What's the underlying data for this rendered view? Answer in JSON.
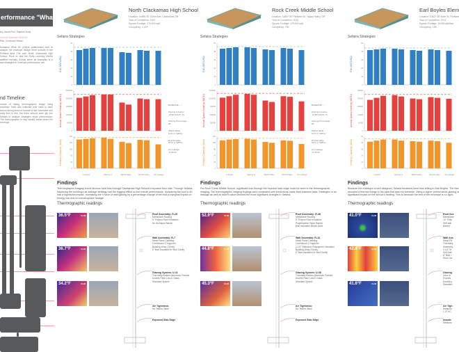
{
  "intro": {
    "title": "erformance \"What Ifs\"",
    "authors": "ley, Jacob Fish, Stephen Emly",
    "advisors_label": "Vertical Graduate Students",
    "advisors": "Pilis, Corrienne Wilson",
    "body": "formance What Ifs\" project collaborated arch to analyze the envelope design three schools in the Portland area. The ools, North Clackamas High School, Rock ol, and the Early Learning Center addition mentary School serve as examples of e and strategies in envelope performance ues.",
    "timeline_heading": "nd Timeline",
    "timeline_body": "rocess of taking thermographic image ilding envelope. Data was collected over visits to each school during times of erature in late November and early ition to this, the three schools were ght into Sefaira to analyze strategies elope performance. The thermographic to help identify areas where the envelope"
  },
  "legend": {
    "baseline": "BASELINE",
    "items": [
      "Glazing U-Factor\n.41 BTU/(h·ft²·°F)",
      "Glazing Percentage\n28",
      "Wall R-Value\n13 ft²·h·°F/BTU",
      "Roof R-Value\n25 ft²·h·°F/BTU",
      "Air Leakage\n.5 cfm/ft²"
    ]
  },
  "colors": {
    "eui": "#2e7fc6",
    "heating": "#e8403c",
    "capacity": "#f4952a",
    "baseline_line": "#5aa7e0",
    "diagram": "#58595b",
    "leader": "#e8a0a8"
  },
  "axis_labels": {
    "eui": "EUI (kBTU/ft2)",
    "heating": "Annual Space Heating (kBTU)",
    "capacity": "Heating Capacity (kBtu)"
  },
  "strategies_title": "Sefaira Strategies",
  "findings_heading": "Findings",
  "thermo_heading": "Thermographic readings",
  "flir": "FLIR",
  "schools": [
    {
      "name": "North Clackamas High School",
      "location": "Location: 14486 SE 122nd Ave, Clackamas OR",
      "year": "Year of Completion: 2002",
      "footage": "Square Footage: 275,000 sqft",
      "occupancy": "Occupancy: 2,219",
      "findings": "Thermographic imaging found obvious heat loss through Clackamas High School's exposed floor slab. Through Sefaira, improving the building's air leakage strategy had the biggest effect on the overall performance. Increasing the roof to 60 had a significant impact. Increasing the r-value of wall glazing by a percentage change of ten had a marginal impact on energy use due to overall square footage.",
      "readings": [
        "36.5°F",
        "36.7°F",
        "34.2°F"
      ],
      "annotations": [
        {
          "title": "Roof Assembly: R-25",
          "body": "Membrane Roofing\n5\" Polyiso Roof Insulation\nNo Air/Vapor Barrier"
        },
        {
          "title": "Wall Assembly: R-7",
          "body": "Metal Panel Cladding\nContinuous Z Supports\nBuilding Wrap (Tyvek)\n6\" Batt Insulation in Stud Cavity"
        },
        {
          "title": "Glazing System: U-41",
          "body": "Thermally Broken Aluminum Frames\nDouble Pane Low-E Glass\nStandard Spacer"
        },
        {
          "title": "Air Tightness:",
          "body": "No Tested Value"
        },
        {
          "title": "Exposed Slab Edge",
          "body": ""
        }
      ]
    },
    {
      "name": "Rock Creek Middle School",
      "location": "Location: 14897 SE Parklane Dr, Happy Valley, OR",
      "year": "Year of Completion: 2010",
      "footage": "Square Footage: 129,000 sqft",
      "occupancy": "Occupancy: 750",
      "findings": "For Rock Creek Middle School, significant loss through the exposed slab edge could be seen in the thermographic imaging. The thermographic imaging findings were consistent with predictions made from baseline data. Strategies in air leakage as well as wall R-value showed the most significant changes in Sefaira.",
      "readings": [
        "52.9°F",
        "44.8°F",
        "45.3°F"
      ],
      "annotations": [
        {
          "title": "Roof Assembly: R-38",
          "body": "Membrane Roofing\n3\" Polyiso Roof Insulation\nPolyethylene Vapor Barrier\nBatt Insulation Below Deck"
        },
        {
          "title": "Wall Assembly: R-16",
          "body": "Metal Panel Cladding\nContinuous Z Supports\n1-1/2\" Extruded Polystyrene Insulation\nBuilding Wrap (Tyvek)\n6\" Batt Insulation in Stud Cavity"
        },
        {
          "title": "Glazing System: U-38",
          "body": "Thermally Broken Aluminum Frames\nDouble Pane Low-E Glass\nStandard Spacer"
        },
        {
          "title": "Air Tightness:",
          "body": "No Tested Value"
        },
        {
          "title": "Exposed Slab Edge",
          "body": ""
        }
      ]
    },
    {
      "name": "Earl Boyles Elementary",
      "location": "Location: 10822 SE Bush St, Portland, OR",
      "year": "Year of Completion: 2014",
      "footage": "Square Footage: 15,000 addition",
      "occupancy": "Occupancy: 198",
      "findings": "Because the envelope is well designed, Sefaira iterations were less telling in Earl Boyles. The thermographic imaging revealed a thermal bridge in the slab that was not foreseen. Using a higher performance glazing would actually have a significant impact on the school's heating. This is because the rest of the envelope is so tight.",
      "readings": [
        "41.0°F",
        "42.4°F",
        "41.8°F"
      ],
      "annotations": [
        {
          "title": "Roof Ass",
          "body": "Membrane\n10\" Polyi\nSelf-adh\nBarrier"
        },
        {
          "title": "Wall Ass",
          "body": "Metal Pa\nThermally\nAssembly\n3 1/2\" M\nSelf-Adh\n6\" Batt I\nStud Cav"
        },
        {
          "title": "Glazing",
          "body": "Ultra Hi\nFrames\nDouble p\nStandard"
        },
        {
          "title": "Air Tigh",
          "body": "Measure\n1.27 AC"
        },
        {
          "title": "Insulat",
          "body": "Measure"
        }
      ]
    }
  ],
  "chart_data": [
    {
      "type": "bar",
      "school": "North Clackamas High School",
      "categories": [
        "U-Factor",
        "Glazing %",
        "Wall R-Value",
        "Roof R-Value",
        "Air Leakage"
      ],
      "eui": {
        "ylim": [
          0,
          60
        ],
        "baseline": 54,
        "groups": [
          [
            50,
            52,
            53
          ],
          [
            53,
            53
          ],
          [
            47,
            46
          ],
          [
            50,
            49
          ],
          [
            49
          ]
        ]
      },
      "heating": {
        "ylim": [
          0,
          3000000
        ],
        "baseline": 2700000,
        "groups": [
          [
            2450000,
            2550000,
            2650000
          ],
          [
            2700000,
            2700000
          ],
          [
            2100000,
            1950000
          ],
          [
            2400000,
            2350000
          ],
          [
            2350000
          ]
        ]
      },
      "capacity": {
        "ylim": [
          0,
          200
        ],
        "baseline": 192,
        "groups": [
          [
            180,
            184,
            188
          ],
          [
            192,
            184
          ],
          [
            166,
            158
          ],
          [
            178,
            176
          ],
          [
            150
          ]
        ]
      }
    },
    {
      "type": "bar",
      "school": "Rock Creek Middle School",
      "categories": [
        "U-Factor",
        "Glazing %",
        "Wall R-Value",
        "Roof R-Value",
        "Air Leakage"
      ],
      "eui": {
        "ylim": [
          0,
          60
        ],
        "baseline": 55,
        "groups": [
          [
            52,
            53,
            54
          ],
          [
            54,
            53
          ],
          [
            51,
            50
          ],
          [
            53,
            52
          ],
          [
            50
          ]
        ]
      },
      "heating": {
        "ylim": [
          0,
          1400000
        ],
        "baseline": 1300000,
        "groups": [
          [
            1150000,
            1200000,
            1250000
          ],
          [
            1280000,
            1250000
          ],
          [
            1050000,
            1000000
          ],
          [
            1200000,
            1180000
          ],
          [
            1020000
          ]
        ]
      },
      "capacity": {
        "ylim": [
          0,
          160
        ],
        "baseline": 150,
        "groups": [
          [
            140,
            144,
            146
          ],
          [
            148,
            144
          ],
          [
            132,
            128
          ],
          [
            140,
            138
          ],
          [
            122
          ]
        ]
      }
    },
    {
      "type": "bar",
      "school": "Earl Boyles Elementary",
      "categories": [
        "U-Factor",
        "Glazing %",
        "Wall R-Value",
        "Roof R-Value",
        "Air Leakage"
      ],
      "eui": {
        "ylim": [
          0,
          60
        ],
        "baseline": 53,
        "groups": [
          [
            50,
            51,
            52
          ],
          [
            52,
            51
          ],
          [
            50,
            49
          ],
          [
            51,
            50
          ],
          [
            49
          ]
        ]
      },
      "heating": {
        "ylim": [
          0,
          300000
        ],
        "baseline": 270000,
        "groups": [
          [
            230000,
            245000,
            260000
          ],
          [
            265000,
            255000
          ],
          [
            240000,
            235000
          ],
          [
            250000,
            245000
          ],
          [
            238000
          ]
        ]
      },
      "capacity": {
        "ylim": [
          0,
          60
        ],
        "baseline": 55,
        "groups": [
          [
            50,
            52,
            54
          ],
          [
            54,
            52
          ],
          [
            51,
            50
          ],
          [
            52,
            51
          ],
          [
            48
          ]
        ]
      }
    }
  ]
}
